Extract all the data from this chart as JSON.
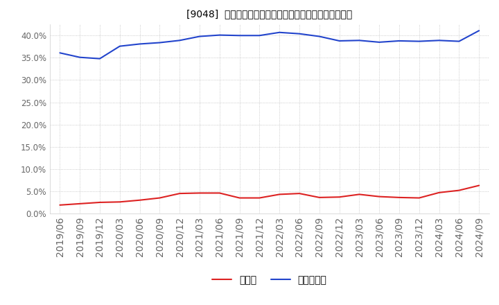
{
  "title": "[9048]  現預金、有利子負債の総資産に対する比率の推移",
  "x_labels": [
    "2019/06",
    "2019/09",
    "2019/12",
    "2020/03",
    "2020/06",
    "2020/09",
    "2020/12",
    "2021/03",
    "2021/06",
    "2021/09",
    "2021/12",
    "2022/03",
    "2022/06",
    "2022/09",
    "2022/12",
    "2023/03",
    "2023/06",
    "2023/09",
    "2023/12",
    "2024/03",
    "2024/06",
    "2024/09"
  ],
  "cash": [
    1.9,
    2.2,
    2.5,
    2.6,
    3.0,
    3.5,
    4.5,
    4.6,
    4.6,
    3.5,
    3.5,
    4.3,
    4.5,
    3.6,
    3.7,
    4.3,
    3.8,
    3.6,
    3.5,
    4.7,
    5.2,
    6.3
  ],
  "debt": [
    36.1,
    35.1,
    34.8,
    37.6,
    38.1,
    38.4,
    38.9,
    39.8,
    40.1,
    40.0,
    40.0,
    40.7,
    40.4,
    39.8,
    38.8,
    38.9,
    38.5,
    38.8,
    38.7,
    38.9,
    38.7,
    41.1
  ],
  "cash_color": "#dd2222",
  "debt_color": "#2244cc",
  "background_color": "#ffffff",
  "plot_bg_color": "#ffffff",
  "grid_color": "#aaaaaa",
  "tick_color": "#666666",
  "ylim": [
    0.0,
    42.5
  ],
  "yticks": [
    0.0,
    5.0,
    10.0,
    15.0,
    20.0,
    25.0,
    30.0,
    35.0,
    40.0
  ],
  "legend_cash": "現預金",
  "legend_debt": "有利子負債",
  "title_fontsize": 12,
  "axis_fontsize": 8.5,
  "legend_fontsize": 10
}
